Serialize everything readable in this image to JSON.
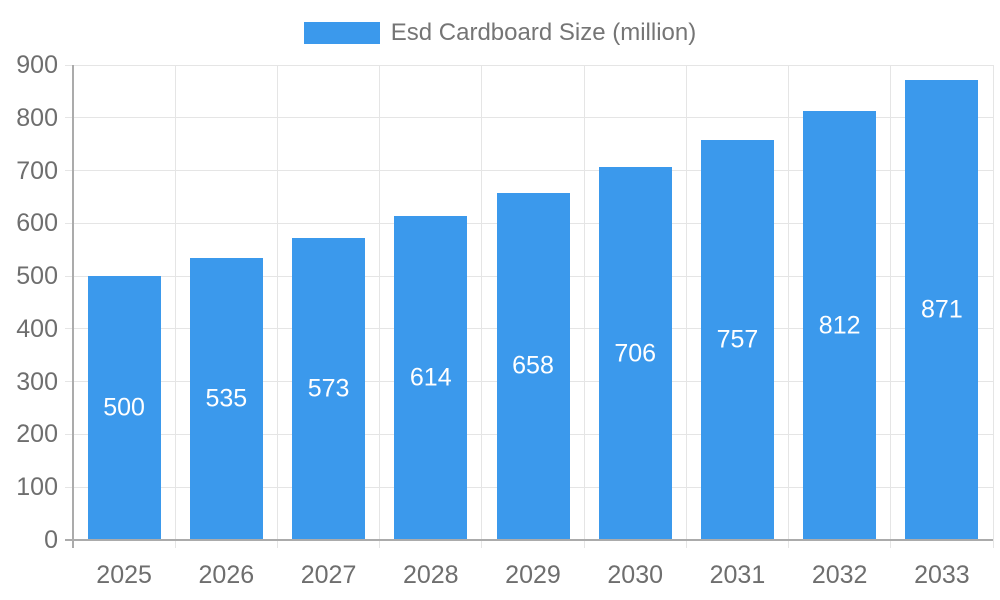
{
  "chart_data": {
    "type": "bar",
    "title": "",
    "legend": "Esd Cardboard Size (million)",
    "legend_position": "top",
    "series_name": "Esd Cardboard Size (million)",
    "categories": [
      "2025",
      "2026",
      "2027",
      "2028",
      "2029",
      "2030",
      "2031",
      "2032",
      "2033"
    ],
    "values": [
      500,
      535,
      573,
      614,
      658,
      706,
      757,
      812,
      871
    ],
    "bar_value_labels": [
      "500",
      "535",
      "573",
      "614",
      "658",
      "706",
      "757",
      "812",
      "871"
    ],
    "xlabel": "",
    "ylabel": "",
    "ylim": [
      0,
      900
    ],
    "ytick_step": 100,
    "ytick_labels": [
      "0",
      "100",
      "200",
      "300",
      "400",
      "500",
      "600",
      "700",
      "800",
      "900"
    ],
    "grid": true,
    "bar_labels_visible": true,
    "colors": {
      "bar": "#3B99EC",
      "axis_line": "#ABABAB",
      "gridline": "#E5E5E5",
      "tick_text": "#6E6E6E",
      "bar_label_text": "#FFFFFF",
      "legend_text": "#757575",
      "background": "#FFFFFF"
    }
  }
}
